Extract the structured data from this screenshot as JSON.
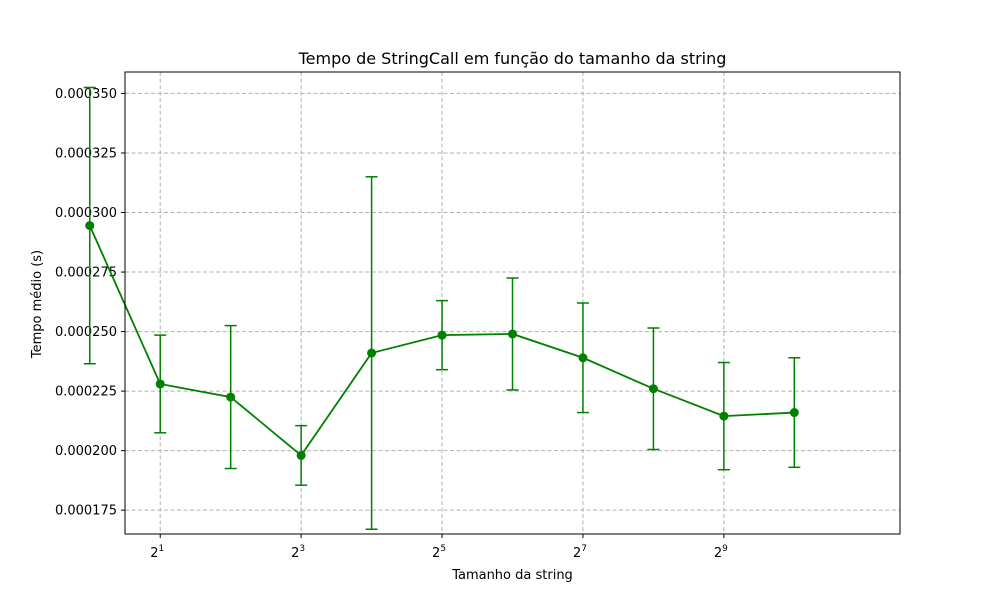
{
  "chart_data": {
    "type": "line",
    "title": "Tempo de StringCall em função do tamanho da string",
    "xlabel": "Tamanho da string",
    "ylabel": "Tempo médio (s)",
    "x_scale": "log2",
    "xlim": [
      0.5,
      11.5
    ],
    "ylim": [
      0.000165,
      0.000359
    ],
    "grid": true,
    "line_color": "#008000",
    "grid_color": "#b0b0b0",
    "x_ticks": [
      {
        "base": "2",
        "exp": "1",
        "x": 1
      },
      {
        "base": "2",
        "exp": "3",
        "x": 3
      },
      {
        "base": "2",
        "exp": "5",
        "x": 5
      },
      {
        "base": "2",
        "exp": "7",
        "x": 7
      },
      {
        "base": "2",
        "exp": "9",
        "x": 9
      }
    ],
    "y_ticks": [
      "0.000175",
      "0.000200",
      "0.000225",
      "0.000250",
      "0.000275",
      "0.000300",
      "0.000325",
      "0.000350"
    ],
    "series": [
      {
        "x": [
          0,
          1,
          2,
          3,
          4,
          5,
          6,
          7,
          8,
          9,
          10
        ],
        "y": [
          0.0002945,
          0.000228,
          0.0002225,
          0.000198,
          0.000241,
          0.0002485,
          0.000249,
          0.000239,
          0.000226,
          0.0002145,
          0.000216
        ],
        "err": [
          5.8e-05,
          2.05e-05,
          3e-05,
          1.25e-05,
          7.4e-05,
          1.45e-05,
          2.35e-05,
          2.3e-05,
          2.55e-05,
          2.25e-05,
          2.3e-05
        ]
      }
    ]
  }
}
